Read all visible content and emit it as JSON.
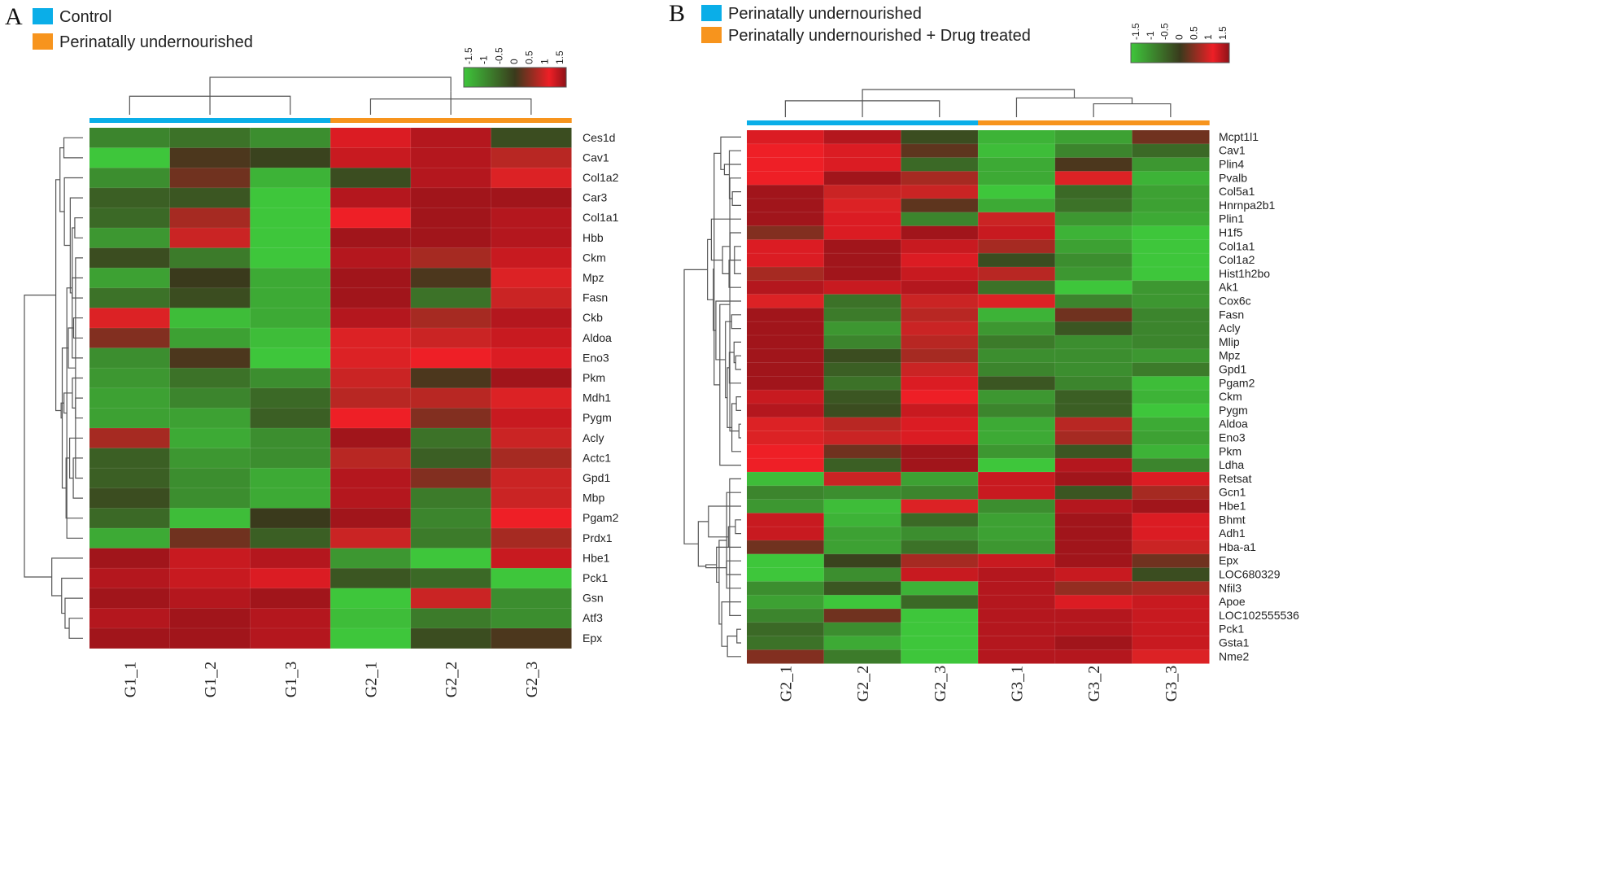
{
  "colors": {
    "low": "#3ec63b",
    "mid": "#3a3a1c",
    "high": "#ee1f26",
    "max": "#8e1218",
    "group_blue": "#0aaee8",
    "group_orange": "#f7941d",
    "line": "#555555"
  },
  "scale_ticks": [
    "-1.5",
    "-1",
    "-0.5",
    "0",
    "0.5",
    "1",
    "1.5"
  ],
  "chart_data": [
    {
      "type": "heatmap",
      "panel": "A",
      "legend": [
        {
          "label": "Control",
          "color": "#0aaee8"
        },
        {
          "label": "Perinatally undernourished",
          "color": "#f7941d"
        }
      ],
      "columns": [
        "G1_1",
        "G1_2",
        "G1_3",
        "G2_1",
        "G2_2",
        "G2_3"
      ],
      "column_groups": [
        "blue",
        "blue",
        "blue",
        "orange",
        "orange",
        "orange"
      ],
      "rows": [
        "Ces1d",
        "Cav1",
        "Col1a2",
        "Car3",
        "Col1a1",
        "Hbb",
        "Ckm",
        "Mpz",
        "Fasn",
        "Ckb",
        "Aldoa",
        "Eno3",
        "Pkm",
        "Mdh1",
        "Pygm",
        "Acly",
        "Actc1",
        "Gpd1",
        "Mbp",
        "Pgam2",
        "Prdx1",
        "Hbe1",
        "Pck1",
        "Gsn",
        "Atf3",
        "Epx"
      ],
      "values": [
        [
          -0.8,
          -0.6,
          -0.9,
          1.1,
          1.3,
          -0.2
        ],
        [
          -1.5,
          0.1,
          -0.1,
          1.2,
          1.3,
          0.7
        ],
        [
          -0.9,
          0.3,
          -1.3,
          -0.2,
          1.3,
          0.9
        ],
        [
          -0.4,
          -0.3,
          -1.5,
          1.3,
          1.4,
          1.4
        ],
        [
          -0.5,
          0.6,
          -1.5,
          1.0,
          1.4,
          1.3
        ],
        [
          -1.0,
          0.8,
          -1.5,
          1.4,
          1.4,
          1.3
        ],
        [
          -0.2,
          -0.7,
          -1.5,
          1.3,
          0.6,
          1.2
        ],
        [
          -1.1,
          0.0,
          -1.2,
          1.4,
          0.1,
          0.9
        ],
        [
          -0.6,
          -0.2,
          -1.2,
          1.4,
          -0.6,
          0.8
        ],
        [
          0.9,
          -1.4,
          -1.2,
          1.3,
          0.6,
          1.3
        ],
        [
          0.4,
          -1.1,
          -1.4,
          0.9,
          0.8,
          1.2
        ],
        [
          -0.9,
          0.1,
          -1.5,
          0.9,
          1.0,
          1.1
        ],
        [
          -1.0,
          -0.6,
          -0.9,
          0.8,
          0.1,
          1.4
        ],
        [
          -1.1,
          -0.8,
          -0.5,
          0.7,
          0.7,
          0.9
        ],
        [
          -1.1,
          -1.1,
          -0.4,
          1.0,
          0.4,
          1.2
        ],
        [
          0.6,
          -1.2,
          -0.9,
          1.4,
          -0.6,
          0.8
        ],
        [
          -0.4,
          -1.0,
          -0.9,
          0.7,
          -0.4,
          0.6
        ],
        [
          -0.4,
          -0.9,
          -1.2,
          1.3,
          0.4,
          0.8
        ],
        [
          -0.2,
          -0.9,
          -1.2,
          1.3,
          -0.7,
          0.8
        ],
        [
          -0.5,
          -1.4,
          0.0,
          1.4,
          -0.8,
          1.0
        ],
        [
          -1.2,
          0.3,
          -0.4,
          0.8,
          -0.7,
          0.6
        ],
        [
          1.4,
          1.2,
          1.3,
          -1.0,
          -1.5,
          1.2
        ],
        [
          1.3,
          1.2,
          1.1,
          -0.3,
          -0.5,
          -1.5
        ],
        [
          1.4,
          1.3,
          1.4,
          -1.5,
          0.8,
          -0.9
        ],
        [
          1.3,
          1.4,
          1.3,
          -1.4,
          -0.7,
          -0.9
        ],
        [
          1.4,
          1.4,
          1.3,
          -1.5,
          -0.2,
          0.1
        ]
      ]
    },
    {
      "type": "heatmap",
      "panel": "B",
      "legend": [
        {
          "label": "Perinatally undernourished",
          "color": "#0aaee8"
        },
        {
          "label": "Perinatally undernourished + Drug treated",
          "color": "#f7941d"
        }
      ],
      "columns": [
        "G2_1",
        "G2_2",
        "G2_3",
        "G3_1",
        "G3_2",
        "G3_3"
      ],
      "column_groups": [
        "blue",
        "blue",
        "blue",
        "orange",
        "orange",
        "orange"
      ],
      "rows": [
        "Mcpt1l1",
        "Cav1",
        "Plin4",
        "Pvalb",
        "Col5a1",
        "Hnrnpa2b1",
        "Plin1",
        "H1f5",
        "Col1a1",
        "Col1a2",
        "Hist1h2bo",
        "Ak1",
        "Cox6c",
        "Fasn",
        "Acly",
        "Mlip",
        "Mpz",
        "Gpd1",
        "Pgam2",
        "Ckm",
        "Pygm",
        "Aldoa",
        "Eno3",
        "Pkm",
        "Ldha",
        "Retsat",
        "Gcn1",
        "Hbe1",
        "Bhmt",
        "Adh1",
        "Hba-a1",
        "Epx",
        "LOC680329",
        "Nfil3",
        "Apoe",
        "LOC102555536",
        "Pck1",
        "Gsta1",
        "Nme2"
      ],
      "values": [
        [
          1.1,
          1.3,
          -0.2,
          -1.3,
          -1.1,
          0.3
        ],
        [
          1.0,
          1.1,
          0.2,
          -1.4,
          -0.8,
          -0.5
        ],
        [
          1.0,
          1.1,
          -0.5,
          -1.2,
          0.1,
          -1.0
        ],
        [
          1.0,
          1.4,
          0.6,
          -1.2,
          0.9,
          -1.3
        ],
        [
          1.4,
          0.8,
          0.8,
          -1.5,
          -0.5,
          -1.1
        ],
        [
          1.4,
          0.9,
          0.2,
          -1.2,
          -0.6,
          -1.1
        ],
        [
          1.4,
          1.1,
          -0.8,
          0.8,
          -1.0,
          -1.2
        ],
        [
          0.4,
          1.1,
          1.4,
          1.2,
          -1.3,
          -1.5
        ],
        [
          1.1,
          1.4,
          1.2,
          0.6,
          -1.1,
          -1.5
        ],
        [
          1.1,
          1.4,
          1.1,
          -0.2,
          -0.9,
          -1.5
        ],
        [
          0.6,
          1.4,
          1.2,
          0.7,
          -1.0,
          -1.5
        ],
        [
          1.3,
          1.2,
          1.3,
          -0.6,
          -1.5,
          -1.0
        ],
        [
          0.9,
          -0.6,
          0.8,
          0.9,
          -0.8,
          -1.0
        ],
        [
          1.4,
          -0.7,
          0.7,
          -1.3,
          0.3,
          -0.8
        ],
        [
          1.4,
          -1.0,
          0.8,
          -1.0,
          -0.3,
          -0.8
        ],
        [
          1.4,
          -0.8,
          0.7,
          -0.7,
          -0.9,
          -0.8
        ],
        [
          1.4,
          -0.2,
          0.6,
          -0.9,
          -0.9,
          -1.0
        ],
        [
          1.4,
          -0.4,
          0.8,
          -0.8,
          -0.9,
          -0.7
        ],
        [
          1.4,
          -0.6,
          1.1,
          -0.3,
          -0.8,
          -1.4
        ],
        [
          1.2,
          -0.3,
          1.0,
          -1.0,
          -0.4,
          -1.3
        ],
        [
          1.3,
          -0.2,
          1.2,
          -0.8,
          -0.4,
          -1.5
        ],
        [
          0.9,
          0.7,
          1.1,
          -1.2,
          0.7,
          -1.2
        ],
        [
          0.9,
          0.8,
          1.1,
          -1.2,
          0.6,
          -1.1
        ],
        [
          1.0,
          0.3,
          1.4,
          -1.0,
          -0.3,
          -1.3
        ],
        [
          1.0,
          -0.4,
          1.4,
          -1.5,
          1.3,
          -0.8
        ],
        [
          -1.4,
          0.8,
          -1.1,
          1.2,
          1.4,
          1.1
        ],
        [
          -0.8,
          -0.9,
          -0.8,
          1.2,
          -0.3,
          0.6
        ],
        [
          -1.0,
          -1.4,
          0.9,
          -0.9,
          1.3,
          1.4
        ],
        [
          1.2,
          -1.3,
          -0.5,
          -1.1,
          1.4,
          1.1
        ],
        [
          1.2,
          -1.1,
          -0.9,
          -1.1,
          1.4,
          1.1
        ],
        [
          0.3,
          -1.1,
          -0.6,
          -1.0,
          1.4,
          0.8
        ],
        [
          -1.5,
          -0.1,
          0.6,
          1.2,
          1.4,
          0.3
        ],
        [
          -1.5,
          -0.9,
          1.2,
          1.3,
          1.2,
          -0.2
        ],
        [
          -0.9,
          -0.3,
          -1.3,
          1.3,
          0.5,
          0.6
        ],
        [
          -1.1,
          -1.5,
          -0.5,
          1.3,
          1.1,
          1.2
        ],
        [
          -0.8,
          0.3,
          -1.5,
          1.3,
          1.3,
          1.2
        ],
        [
          -0.5,
          -0.9,
          -1.5,
          1.3,
          1.3,
          1.2
        ],
        [
          -0.6,
          -1.2,
          -1.5,
          1.3,
          1.4,
          1.2
        ],
        [
          0.4,
          -0.7,
          -1.5,
          1.3,
          1.3,
          0.9
        ]
      ]
    }
  ]
}
